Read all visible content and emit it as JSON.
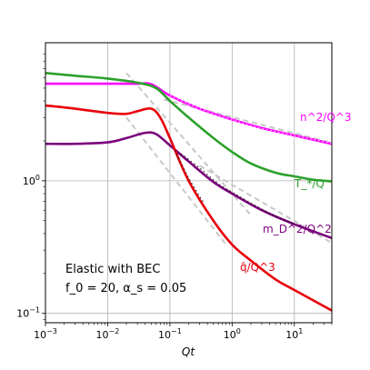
{
  "chart_data": {
    "type": "line",
    "title": "",
    "xlabel": "Qt",
    "ylabel": "",
    "xscale": "log",
    "yscale": "log",
    "xlim": [
      0.001,
      40
    ],
    "ylim": [
      0.085,
      11
    ],
    "grid": true,
    "x_tick_labels": [
      "10^-3",
      "10^-2",
      "10^-1",
      "10^0",
      "10^1"
    ],
    "y_tick_labels": [
      "10^-1",
      "10^0"
    ],
    "annotation": {
      "line1": "Elastic with BEC",
      "line2": "f_0 = 20, α_s = 0.05"
    },
    "series": [
      {
        "label": "n^2/Q^3",
        "color": "#ff00ff",
        "x": [
          0.001,
          0.003,
          0.01,
          0.03,
          0.05,
          0.1,
          0.3,
          1,
          3,
          10,
          40
        ],
        "y": [
          5.4,
          5.4,
          5.4,
          5.4,
          5.35,
          4.4,
          3.5,
          2.9,
          2.5,
          2.2,
          1.9
        ]
      },
      {
        "label": "T_*/Q",
        "color": "#2ca02c",
        "x": [
          0.001,
          0.003,
          0.01,
          0.03,
          0.06,
          0.1,
          0.2,
          0.5,
          1,
          2,
          5,
          10,
          20,
          40
        ],
        "y": [
          6.5,
          6.2,
          5.9,
          5.5,
          5.0,
          4.0,
          3.0,
          2.1,
          1.65,
          1.35,
          1.15,
          1.08,
          1.02,
          0.99
        ]
      },
      {
        "label": "m_D^2/Q^2",
        "color": "#7b007b",
        "x": [
          0.001,
          0.003,
          0.01,
          0.02,
          0.04,
          0.06,
          0.1,
          0.2,
          0.5,
          1,
          3,
          10,
          40
        ],
        "y": [
          1.9,
          1.9,
          1.95,
          2.1,
          2.3,
          2.25,
          1.85,
          1.4,
          0.98,
          0.8,
          0.6,
          0.47,
          0.37
        ]
      },
      {
        "label": "q̂/Q^3",
        "color": "#e8000b",
        "x": [
          0.001,
          0.003,
          0.01,
          0.02,
          0.03,
          0.05,
          0.07,
          0.1,
          0.2,
          0.5,
          1,
          2,
          5,
          10,
          40
        ],
        "y": [
          3.7,
          3.5,
          3.25,
          3.2,
          3.35,
          3.5,
          3.0,
          2.1,
          1.0,
          0.5,
          0.33,
          0.25,
          0.18,
          0.15,
          0.105
        ]
      }
    ],
    "asymptotes": [
      {
        "color": "#c8c8c8",
        "x": [
          0.02,
          2
        ],
        "y": [
          6.5,
          0.55
        ]
      },
      {
        "color": "#c8c8c8",
        "x": [
          0.02,
          0.8
        ],
        "y": [
          3.0,
          0.33
        ]
      },
      {
        "color": "#c8c8c8",
        "x": [
          0.08,
          40
        ],
        "y": [
          4.1,
          1.93
        ]
      },
      {
        "color": "#c8c8c8",
        "x": [
          0.3,
          40
        ],
        "y": [
          1.3,
          0.34
        ]
      }
    ],
    "fit_dots": [
      {
        "color": "#ff00ff",
        "x": [
          0.1,
          0.2,
          0.5,
          1,
          2,
          5,
          10,
          20,
          40
        ],
        "y": [
          4.4,
          3.8,
          3.2,
          2.9,
          2.6,
          2.35,
          2.2,
          2.05,
          1.92
        ]
      },
      {
        "color": "#7b007b",
        "x": [
          0.15,
          0.3,
          0.6,
          1.2,
          2.5,
          5,
          10
        ],
        "y": [
          1.6,
          1.25,
          0.95,
          0.78,
          0.64,
          0.54,
          0.47
        ]
      },
      {
        "color": "#e8000b",
        "x": [
          0.12,
          0.2,
          0.35
        ],
        "y": [
          1.7,
          1.05,
          0.68
        ]
      }
    ]
  }
}
